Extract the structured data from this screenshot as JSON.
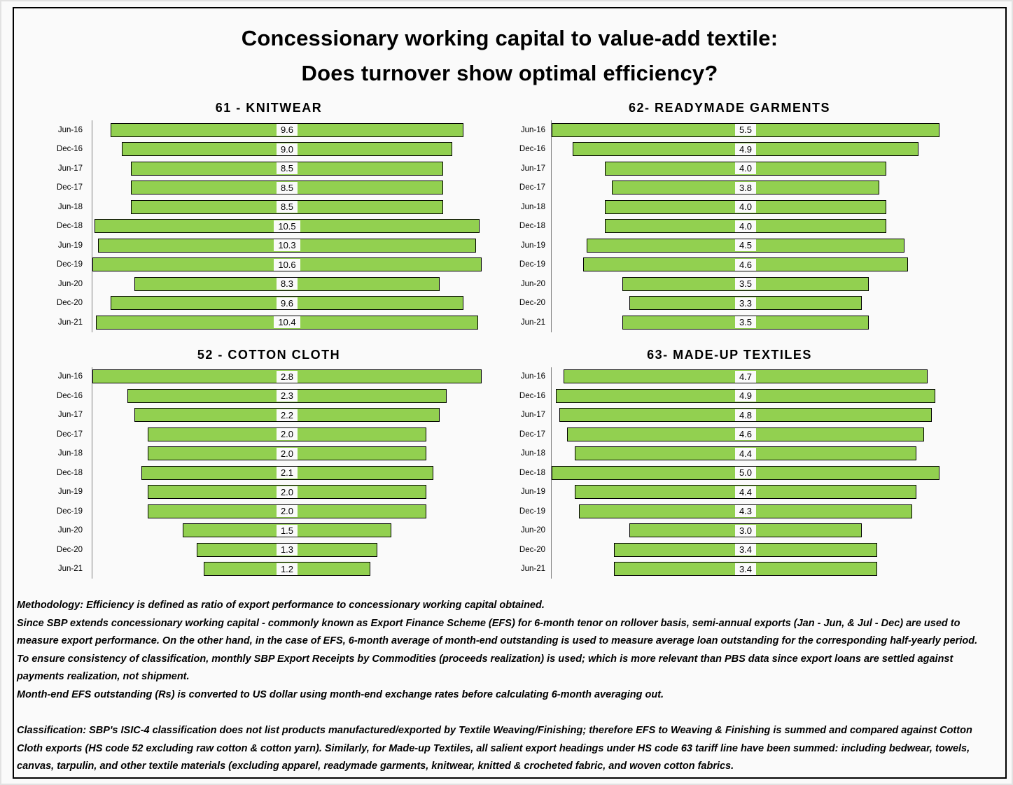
{
  "header": {
    "title_line1": "Concessionary working capital to value-add textile:",
    "title_line2": "Does turnover show optimal efficiency?"
  },
  "chart_data": [
    {
      "type": "bar",
      "orientation": "horizontal_centered",
      "title": "61 - KNITWEAR",
      "categories": [
        "Jun-16",
        "Dec-16",
        "Jun-17",
        "Dec-17",
        "Jun-18",
        "Dec-18",
        "Jun-19",
        "Dec-19",
        "Jun-20",
        "Dec-20",
        "Jun-21"
      ],
      "values": [
        9.6,
        9.0,
        8.5,
        8.5,
        8.5,
        10.5,
        10.3,
        10.6,
        8.3,
        9.6,
        10.4
      ],
      "xlim": [
        0,
        10.6
      ],
      "grid": false,
      "legend": false,
      "data_labels": true
    },
    {
      "type": "bar",
      "orientation": "horizontal_centered",
      "title": "62- READYMADE GARMENTS",
      "categories": [
        "Jun-16",
        "Dec-16",
        "Jun-17",
        "Dec-17",
        "Jun-18",
        "Dec-18",
        "Jun-19",
        "Dec-19",
        "Jun-20",
        "Dec-20",
        "Jun-21"
      ],
      "values": [
        5.5,
        4.9,
        4.0,
        3.8,
        4.0,
        4.0,
        4.5,
        4.6,
        3.5,
        3.3,
        3.5
      ],
      "xlim": [
        0,
        5.5
      ],
      "grid": false,
      "legend": false,
      "data_labels": true
    },
    {
      "type": "bar",
      "orientation": "horizontal_centered",
      "title": "52 - COTTON CLOTH",
      "categories": [
        "Jun-16",
        "Dec-16",
        "Jun-17",
        "Dec-17",
        "Jun-18",
        "Dec-18",
        "Jun-19",
        "Dec-19",
        "Jun-20",
        "Dec-20",
        "Jun-21"
      ],
      "values": [
        2.8,
        2.3,
        2.2,
        2.0,
        2.0,
        2.1,
        2.0,
        2.0,
        1.5,
        1.3,
        1.2
      ],
      "xlim": [
        0,
        2.8
      ],
      "grid": false,
      "legend": false,
      "data_labels": true
    },
    {
      "type": "bar",
      "orientation": "horizontal_centered",
      "title": "63- MADE-UP TEXTILES",
      "categories": [
        "Jun-16",
        "Dec-16",
        "Jun-17",
        "Dec-17",
        "Jun-18",
        "Dec-18",
        "Jun-19",
        "Dec-19",
        "Jun-20",
        "Dec-20",
        "Jun-21"
      ],
      "values": [
        4.7,
        4.9,
        4.8,
        4.6,
        4.4,
        5.0,
        4.4,
        4.3,
        3.0,
        3.4,
        3.4
      ],
      "xlim": [
        0,
        5.0
      ],
      "grid": false,
      "legend": false,
      "data_labels": true
    }
  ],
  "notes": {
    "paragraphs": [
      {
        "space_before": false,
        "text": "Methodology: Efficiency is defined as ratio of export performance to concessionary working capital obtained."
      },
      {
        "space_before": false,
        "text": "Since SBP extends concessionary working capital - commonly known as Export Finance Scheme (EFS) for 6-month tenor on rollover basis, semi-annual exports (Jan - Jun, & Jul - Dec) are used to measure export performance. On the other hand, in the case of EFS, 6-month average of month-end outstanding is used to measure average loan outstanding for the corresponding half-yearly period."
      },
      {
        "space_before": false,
        "text": "To ensure consistency of classification, monthly SBP Export Receipts by Commodities (proceeds realization) is used; which is more relevant than PBS data since export loans are settled against payments realization, not shipment."
      },
      {
        "space_before": false,
        "text": "Month-end EFS outstanding (Rs) is converted to US dollar using month-end exchange rates before calculating 6-month averaging out."
      },
      {
        "space_before": true,
        "text": "Classification: SBP's ISIC-4 classification does not list products manufactured/exported by Textile Weaving/Finishing; therefore EFS to Weaving & Finishing is summed and compared against Cotton Cloth exports (HS code 52 excluding raw cotton & cotton yarn). Similarly, for Made-up Textiles, all salient export headings under HS code 63 tariff line have been summed: including bedwear, towels, canvas, tarpulin, and other textile materials (excluding apparel, readymade garments, knitwear, knitted & crocheted fabric, and woven cotton fabrics."
      }
    ]
  },
  "colors": {
    "bar_fill": "#92D050",
    "bar_border": "#000000",
    "axis_line": "#808080",
    "frame_border": "#000000",
    "background": "#FAFAFA"
  }
}
